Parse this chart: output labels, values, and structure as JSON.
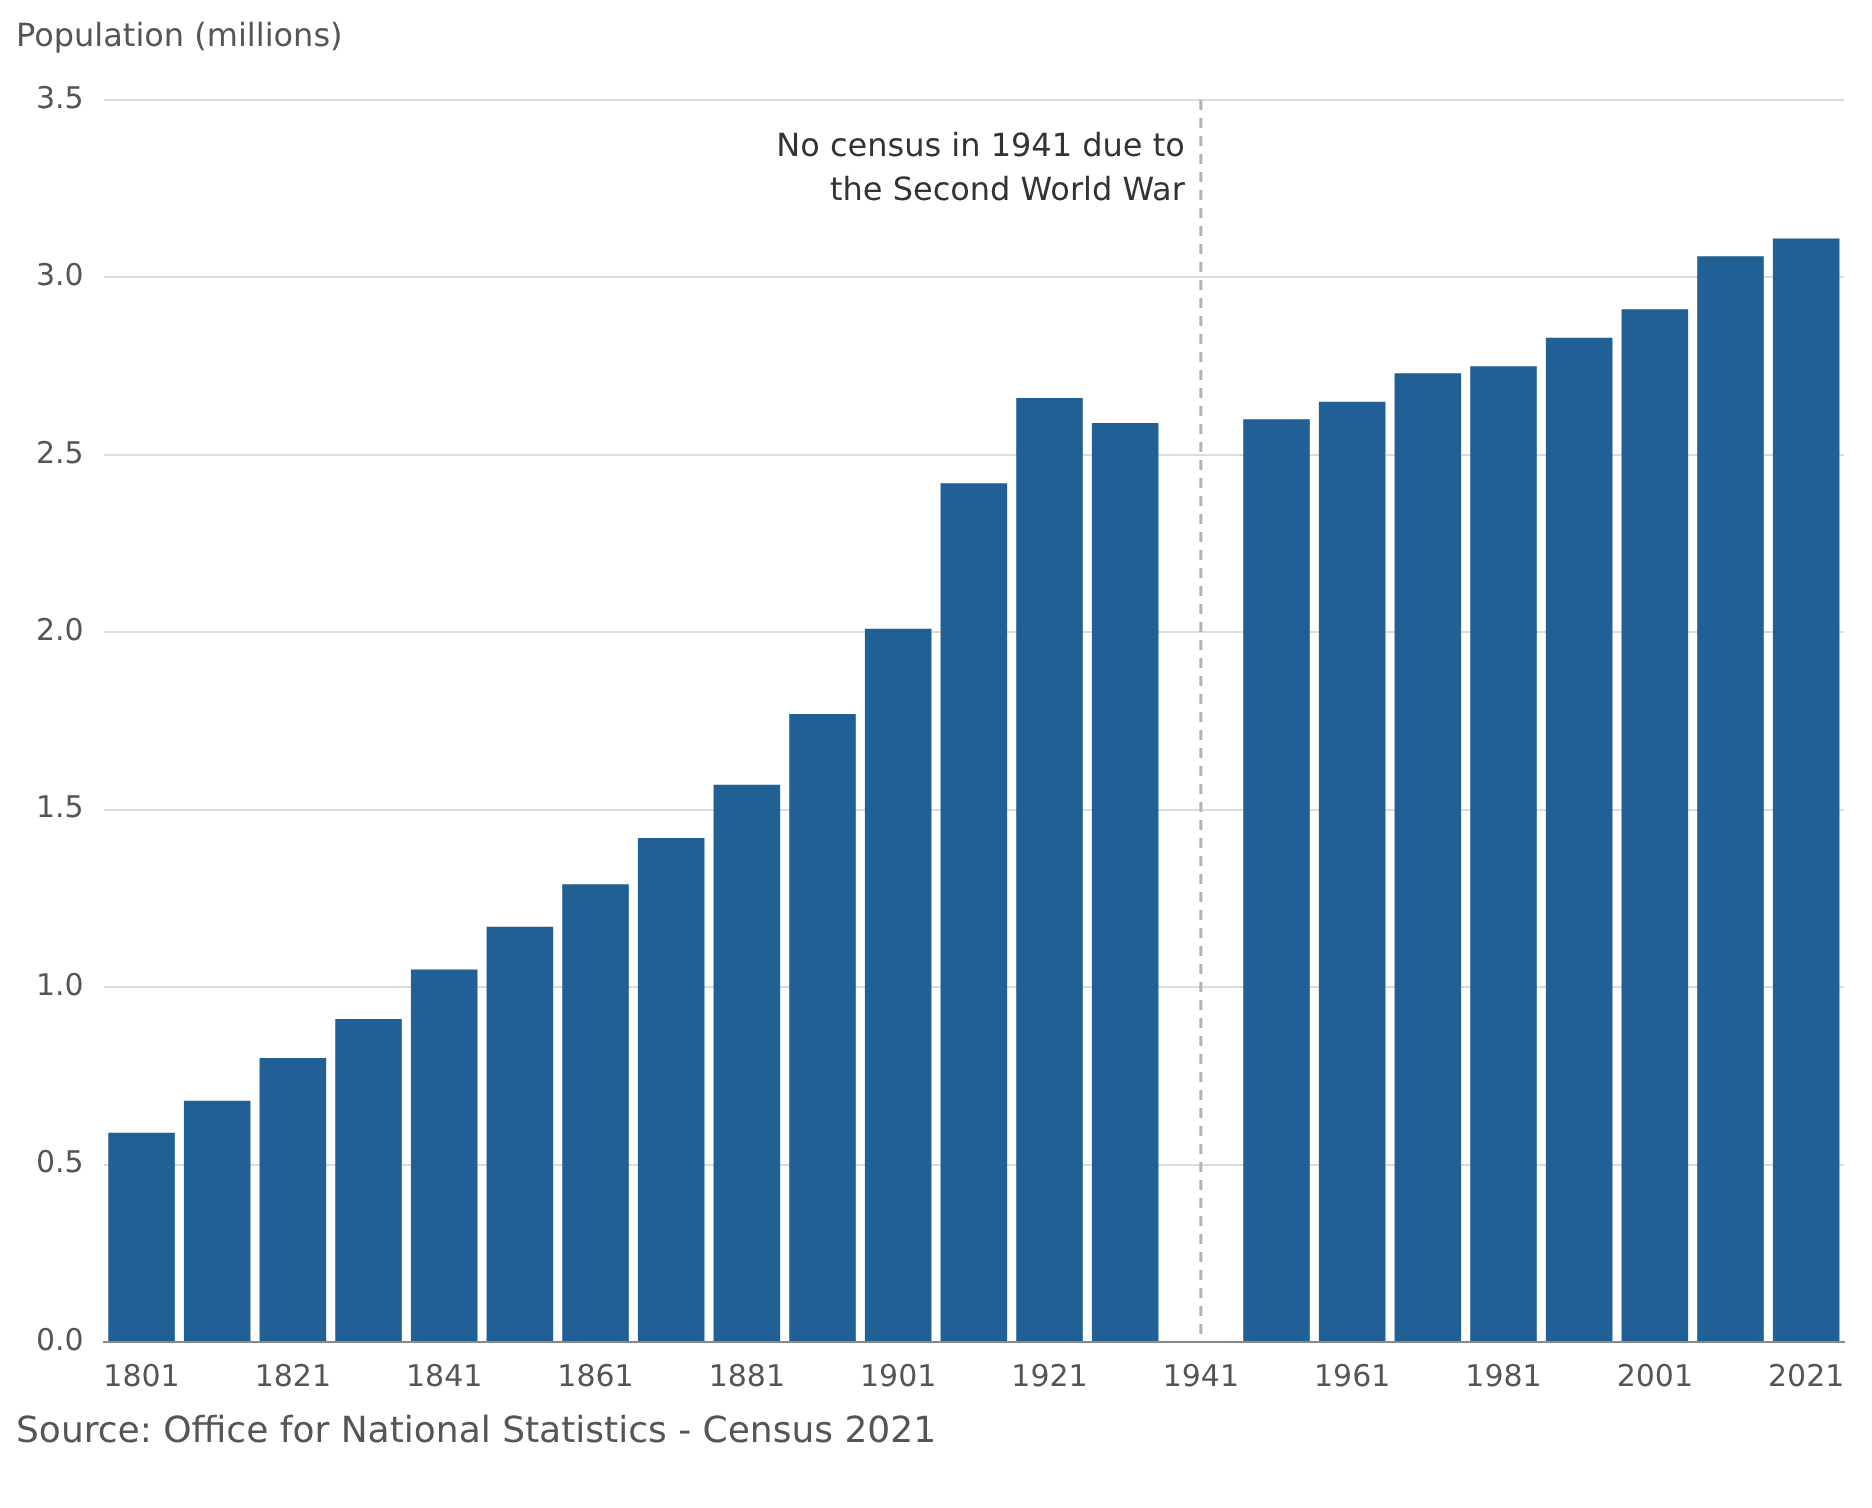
{
  "chart_data": {
    "type": "bar",
    "ylabel": "Population (millions)",
    "categories": [
      "1801",
      null,
      "1821",
      null,
      "1841",
      null,
      "1861",
      null,
      "1881",
      null,
      "1901",
      null,
      "1921",
      null,
      "1941",
      null,
      "1961",
      null,
      "1981",
      null,
      "2001",
      null,
      "2021"
    ],
    "values": [
      0.59,
      0.68,
      0.8,
      0.91,
      1.05,
      1.17,
      1.29,
      1.42,
      1.57,
      1.77,
      2.01,
      2.42,
      2.66,
      2.59,
      null,
      2.6,
      2.65,
      2.73,
      2.75,
      2.83,
      2.91,
      3.06,
      3.11
    ],
    "color": "#206095",
    "ylim": [
      0,
      3.5
    ],
    "yticks": [
      {
        "value": 0,
        "label": "0.0"
      },
      0.5,
      {
        "value": 1,
        "label": "1.0"
      },
      1.5,
      {
        "value": 2,
        "label": "2.0"
      },
      2.5,
      {
        "value": 3,
        "label": "3.0"
      },
      3.5
    ],
    "grid": "y",
    "ref_lines": [
      {
        "axis": "x",
        "value": "1941",
        "label": "No census in 1941 due to\nthe Second World War",
        "color": "#b3b3b3",
        "line_style": "dashed"
      }
    ],
    "annotations": [
      "Source: Office for National Statistics - Census 2021"
    ]
  }
}
